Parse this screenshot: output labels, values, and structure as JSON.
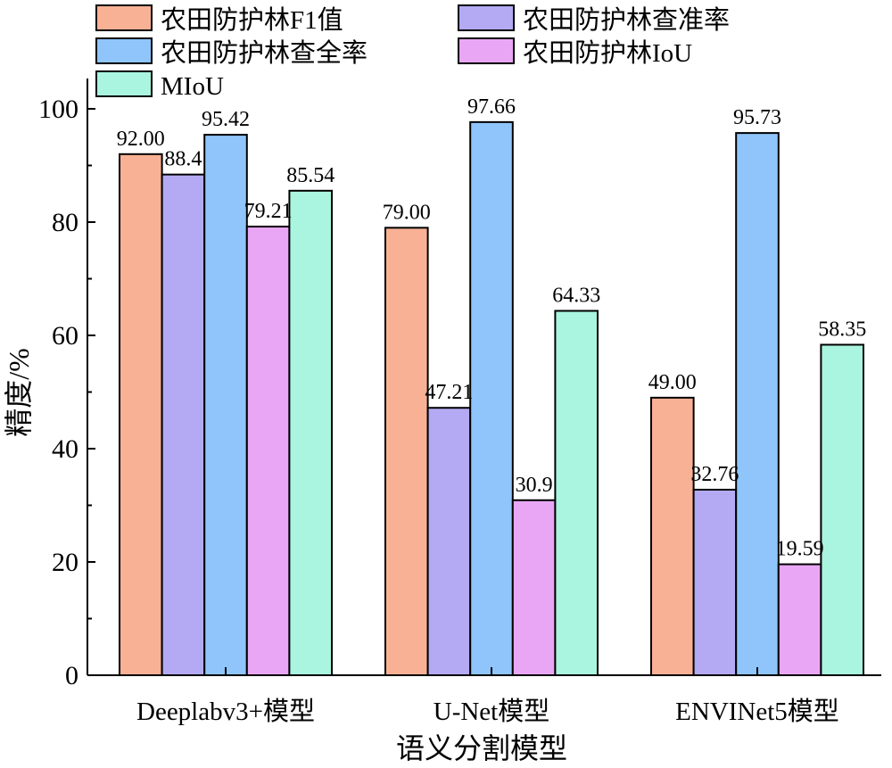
{
  "chart_data": {
    "type": "bar",
    "title": "",
    "xlabel": "语义分割模型",
    "ylabel": "精度/%",
    "ylim": [
      0,
      100
    ],
    "yticks": [
      0,
      20,
      40,
      60,
      80,
      100
    ],
    "grid": false,
    "legend_position": "top-left",
    "categories": [
      "Deeplabv3+模型",
      "U-Net模型",
      "ENVINet5模型"
    ],
    "series": [
      {
        "name": "农田防护林F1值",
        "color": "#f9b195",
        "values": [
          92.0,
          79.0,
          49.0
        ],
        "labels": [
          "92.00",
          "79.00",
          "49.00"
        ]
      },
      {
        "name": "农田防护林查准率",
        "color": "#b3aaf3",
        "values": [
          88.4,
          47.21,
          32.76
        ],
        "labels": [
          "88.4",
          "47.21",
          "32.76"
        ]
      },
      {
        "name": "农田防护林查全率",
        "color": "#8fc5fa",
        "values": [
          95.42,
          97.66,
          95.73
        ],
        "labels": [
          "95.42",
          "97.66",
          "95.73"
        ]
      },
      {
        "name": "农田防护林IoU",
        "color": "#e8a6f5",
        "values": [
          79.21,
          30.9,
          19.59
        ],
        "labels": [
          "79.21",
          "30.9",
          "19.59"
        ]
      },
      {
        "name": "MIoU",
        "color": "#a9f5df",
        "values": [
          85.54,
          64.33,
          58.35
        ],
        "labels": [
          "85.54",
          "64.33",
          "58.35"
        ]
      }
    ]
  }
}
